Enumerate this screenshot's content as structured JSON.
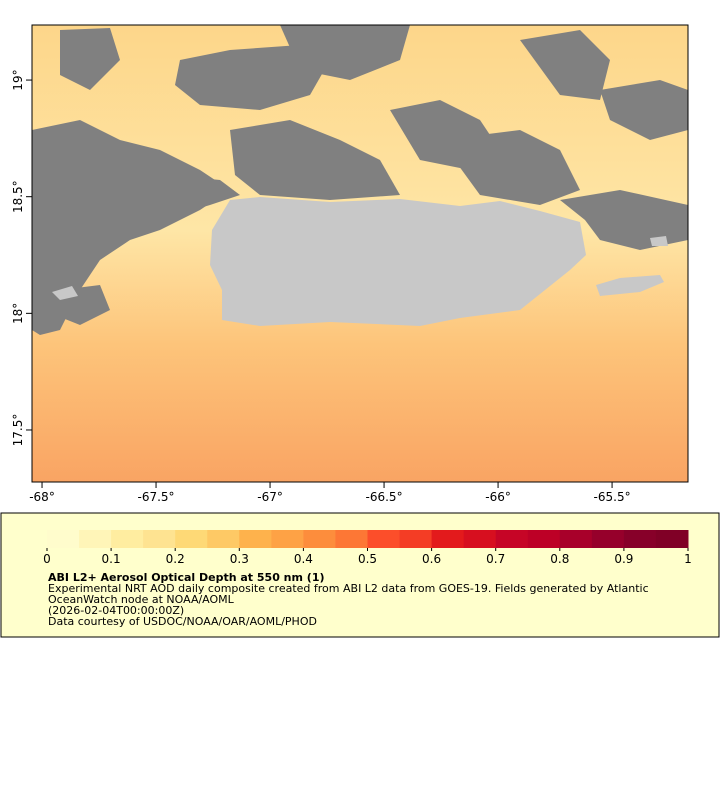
{
  "map": {
    "xlim": [
      -68.044,
      -65.167
    ],
    "ylim": [
      17.277,
      19.236
    ],
    "xticks": [
      {
        "value": -68,
        "label": "-68°"
      },
      {
        "value": -67.5,
        "label": "-67.5°"
      },
      {
        "value": -67,
        "label": "-67°"
      },
      {
        "value": -66.5,
        "label": "-66.5°"
      },
      {
        "value": -66,
        "label": "-66°"
      },
      {
        "value": -65.5,
        "label": "-65.5°"
      }
    ],
    "yticks": [
      {
        "value": 17.5,
        "label": "17.5°"
      },
      {
        "value": 18,
        "label": "18°"
      },
      {
        "value": 18.5,
        "label": "18.5°"
      },
      {
        "value": 19,
        "label": "19°"
      }
    ]
  },
  "colorbar": {
    "lim": [
      0,
      1
    ],
    "ticks": [
      0,
      0.1,
      0.2,
      0.3,
      0.4,
      0.5,
      0.6,
      0.7,
      0.8,
      0.9,
      1
    ],
    "colors": [
      "#fffccc",
      "#fff5b8",
      "#ffeda0",
      "#fee391",
      "#fed976",
      "#fec965",
      "#feb24c",
      "#fea245",
      "#fd8d3c",
      "#fd7735",
      "#fc4e2a",
      "#f43d25",
      "#e31a1c",
      "#d70f1f",
      "#c60526",
      "#bd0026",
      "#a8002a",
      "#96002b",
      "#870029",
      "#800026"
    ]
  },
  "legend": {
    "title": "ABI L2+ Aerosol Optical Depth at 550 nm (1)",
    "lines": [
      "Experimental NRT AOD daily composite created from ABI L2 data from GOES-19. Fields generated by Atlantic",
      "OceanWatch node at NOAA/AOML",
      "(2026-02-04T00:00:00Z)",
      "Data courtesy of USDOC/NOAA/OAR/AOML/PHOD"
    ]
  }
}
